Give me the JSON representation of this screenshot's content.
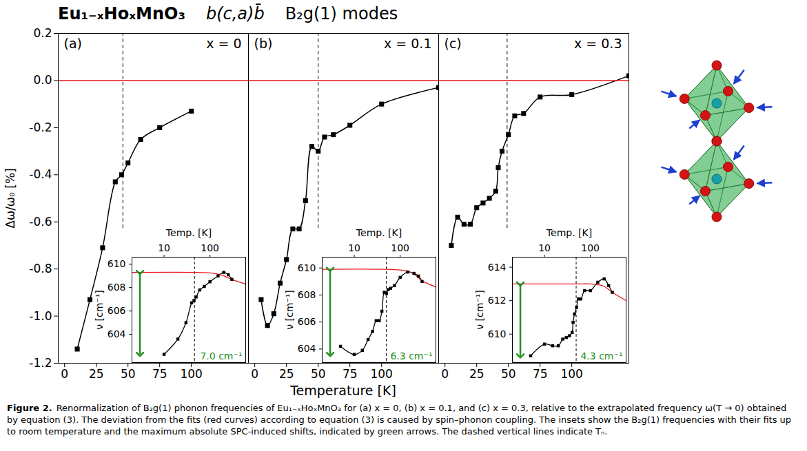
{
  "title": [
    "Eu₁₋ₓHoₓMnO₃",
    "b(c,a)b̄",
    "B₂g(1) modes"
  ],
  "ylabel": "Δω/ω₀ [%]",
  "xlabel": "Temperature [K]",
  "caption": {
    "label": "Figure 2.",
    "text": "Renormalization of B₂g(1) phonon frequencies of Eu₁₋ₓHoₓMnO₃ for (a) x = 0, (b) x = 0.1, and (c) x = 0.3, relative to the extrapolated frequency ω(T → 0) obtained by equation (3). The deviation from the fits (red curves) according to equation (3) is caused by spin–phonon coupling. The insets show the B₂g(1) frequencies with their fits up to room temperature and the maximum absolute SPC-induced shifts, indicated by green arrows. The dashed vertical lines indicate Tₙ."
  },
  "chart_data": [
    {
      "type": "line",
      "panel": "(a)",
      "label": "x = 0",
      "xlim": [
        -5,
        145
      ],
      "xticks": [
        0,
        25,
        50,
        75,
        100
      ],
      "ylim": [
        -1.2,
        0.2
      ],
      "yticks": [
        -1.2,
        {
          "value": -1,
          "label": "-1.0"
        },
        -0.8,
        -0.6,
        -0.4,
        -0.2,
        {
          "value": 0,
          "label": "0.0"
        },
        0.2
      ],
      "tn": 46,
      "series": [
        {
          "color": "#000000",
          "marker": "square",
          "x": [
            10,
            20,
            30,
            40,
            45,
            50,
            60,
            75,
            100
          ],
          "values": [
            -1.14,
            -0.93,
            -0.71,
            -0.43,
            -0.4,
            -0.35,
            -0.25,
            -0.2,
            -0.13
          ]
        },
        {
          "color": "#e8141c",
          "x": [
            -5,
            145
          ],
          "values": [
            0,
            0
          ]
        }
      ],
      "inset": {
        "type": "line",
        "log": "x",
        "xlabel": "Temp. [K]",
        "ylabel": "ν [cm⁻¹]",
        "xlim": [
          2,
          600
        ],
        "xticks": [
          10,
          100
        ],
        "ylim": [
          601.6,
          610.6
        ],
        "yticks": [
          604,
          606,
          608,
          610
        ],
        "tn": 46,
        "series": [
          {
            "color": "#000000",
            "marker": "square",
            "x": [
              10,
              20,
              30,
              40,
              45,
              50,
              60,
              75,
              100,
              150,
              200,
              250,
              300
            ],
            "values": [
              602.3,
              603.6,
              605.0,
              606.7,
              606.9,
              607.2,
              607.8,
              608.1,
              608.5,
              609.0,
              609.3,
              609.1,
              608.7
            ]
          },
          {
            "color": "#e8141c",
            "x": [
              2,
              50,
              100,
              150,
              200,
              300,
              600
            ],
            "values": [
              609.3,
              609.3,
              609.25,
              609.15,
              609.0,
              608.7,
              608.3
            ]
          }
        ],
        "shift": {
          "from": 609.3,
          "value": 7.0,
          "label": "7.0 cm⁻¹",
          "color": "#1f8f1f"
        }
      }
    },
    {
      "type": "line",
      "panel": "(b)",
      "label": "x = 0.1",
      "tick_labels": "x",
      "xlim": [
        -5,
        145
      ],
      "xticks": [
        0,
        25,
        50,
        75,
        100
      ],
      "ylim": [
        -1.2,
        0.2
      ],
      "yticks": [
        -1.2,
        {
          "value": -1,
          "label": "-1.0"
        },
        -0.8,
        -0.6,
        -0.4,
        -0.2,
        {
          "value": 0,
          "label": "0.0"
        },
        0.2
      ],
      "tn": 50,
      "series": [
        {
          "color": "#000000",
          "marker": "square",
          "x": [
            5,
            10,
            15,
            20,
            25,
            30,
            35,
            40,
            45,
            50,
            55,
            62,
            75,
            100,
            145
          ],
          "values": [
            -0.93,
            -1.04,
            -0.99,
            -0.86,
            -0.76,
            -0.63,
            -0.63,
            -0.51,
            -0.28,
            -0.3,
            -0.24,
            -0.23,
            -0.19,
            -0.1,
            -0.03
          ]
        },
        {
          "color": "#e8141c",
          "x": [
            -5,
            145
          ],
          "values": [
            0,
            0
          ]
        }
      ],
      "inset": {
        "type": "line",
        "log": "x",
        "xlabel": "Temp. [K]",
        "ylabel": "ν [cm⁻¹]",
        "xlim": [
          2,
          600
        ],
        "xticks": [
          10,
          100
        ],
        "ylim": [
          603.0,
          610.8
        ],
        "yticks": [
          604,
          606,
          608,
          610
        ],
        "tn": 50,
        "series": [
          {
            "color": "#000000",
            "marker": "square",
            "x": [
              5,
              10,
              15,
              20,
              25,
              30,
              35,
              40,
              45,
              50,
              55,
              62,
              75,
              100,
              145,
              200,
              250,
              300
            ],
            "values": [
              604.2,
              603.6,
              603.9,
              604.7,
              605.3,
              606.1,
              606.1,
              606.8,
              608.2,
              608.1,
              608.4,
              608.5,
              608.7,
              609.3,
              609.7,
              609.6,
              609.4,
              609.0
            ]
          },
          {
            "color": "#e8141c",
            "x": [
              2,
              50,
              100,
              150,
              200,
              300,
              600
            ],
            "values": [
              609.9,
              609.9,
              609.85,
              609.75,
              609.55,
              609.05,
              608.6
            ]
          }
        ],
        "shift": {
          "from": 609.9,
          "value": 6.3,
          "label": "6.3 cm⁻¹",
          "color": "#1f8f1f"
        }
      }
    },
    {
      "type": "line",
      "panel": "(c)",
      "label": "x = 0.3",
      "tick_labels": "x",
      "xlim": [
        -5,
        145
      ],
      "xticks": [
        0,
        25,
        50,
        75,
        100
      ],
      "ylim": [
        -1.2,
        0.2
      ],
      "yticks": [
        -1.2,
        {
          "value": -1,
          "label": "-1.0"
        },
        -0.8,
        -0.6,
        -0.4,
        -0.2,
        {
          "value": 0,
          "label": "0.0"
        },
        0.2
      ],
      "tn": 49,
      "series": [
        {
          "color": "#000000",
          "marker": "square",
          "x": [
            5,
            10,
            15,
            20,
            25,
            30,
            35,
            40,
            42,
            45,
            50,
            55,
            62,
            75,
            100,
            145
          ],
          "values": [
            -0.7,
            -0.58,
            -0.61,
            -0.61,
            -0.54,
            -0.52,
            -0.5,
            -0.47,
            -0.37,
            -0.3,
            -0.23,
            -0.15,
            -0.14,
            -0.07,
            -0.06,
            0.02
          ]
        },
        {
          "color": "#e8141c",
          "x": [
            -5,
            145
          ],
          "values": [
            0,
            0
          ]
        }
      ],
      "inset": {
        "type": "line",
        "log": "x",
        "xlabel": "Temp. [K]",
        "ylabel": "ν [cm⁻¹]",
        "xlim": [
          2,
          600
        ],
        "xticks": [
          10,
          100
        ],
        "ylim": [
          608.3,
          614.6
        ],
        "yticks": [
          610,
          612,
          614
        ],
        "tn": 49,
        "series": [
          {
            "color": "#000000",
            "marker": "square",
            "x": [
              5,
              10,
              15,
              20,
              25,
              30,
              35,
              40,
              42,
              45,
              50,
              55,
              62,
              75,
              100,
              145,
              200,
              250,
              300
            ],
            "values": [
              608.7,
              609.4,
              609.3,
              609.3,
              609.7,
              609.8,
              609.9,
              610.1,
              610.7,
              611.2,
              611.6,
              612.1,
              612.1,
              612.6,
              612.6,
              613.1,
              613.3,
              612.9,
              612.5
            ]
          },
          {
            "color": "#e8141c",
            "x": [
              2,
              50,
              100,
              150,
              200,
              300,
              600
            ],
            "values": [
              613.0,
              613.0,
              613.0,
              612.95,
              612.85,
              612.5,
              612.0
            ]
          }
        ],
        "shift": {
          "from": 613.0,
          "value": 4.3,
          "label": "4.3 cm⁻¹",
          "color": "#1f8f1f"
        }
      }
    }
  ]
}
